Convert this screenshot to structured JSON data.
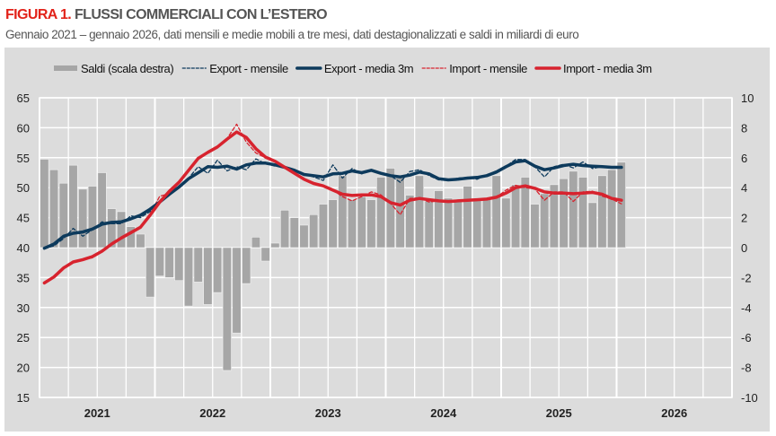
{
  "header": {
    "figure_label": "FIGURA 1.",
    "title": "FLUSSI COMMERCIALI CON L’ESTERO",
    "subtitle": "Gennaio 2021 – gennaio 2026, dati mensili e medie mobili a tre mesi, dati destagionalizzati e saldi in miliardi di euro"
  },
  "chart_data": {
    "type": "bar+line",
    "title": "FLUSSI COMMERCIALI CON L’ESTERO",
    "x_tick_labels": [
      "2021",
      "2022",
      "2023",
      "2024",
      "2025",
      "2026"
    ],
    "x_range": [
      "2021-01",
      "2026-12"
    ],
    "x_start": "2021-01",
    "left_axis": {
      "ylim": [
        15,
        65
      ],
      "ticks": [
        15,
        20,
        25,
        30,
        35,
        40,
        45,
        50,
        55,
        60,
        65
      ]
    },
    "right_axis": {
      "ylim": [
        -10,
        10
      ],
      "ticks": [
        -10,
        -8,
        -6,
        -4,
        -2,
        0,
        2,
        4,
        6,
        8,
        10
      ]
    },
    "grid": true,
    "legend_position": "top",
    "colors": {
      "bars": "#a6a6a6",
      "export": "#0d3a5c",
      "import": "#d7232e",
      "panel": "#dcdcdc",
      "grid": "#ffffff"
    },
    "series": [
      {
        "name": "Saldi (scala destra)",
        "kind": "bar",
        "axis": "right",
        "values": [
          5.9,
          5.2,
          4.3,
          5.5,
          3.9,
          4.1,
          5.0,
          2.6,
          2.4,
          1.4,
          0.9,
          -3.3,
          -1.9,
          -2.0,
          -2.2,
          -3.9,
          -2.3,
          -3.8,
          -3.0,
          -8.2,
          -5.7,
          -2.4,
          0.7,
          -0.9,
          0.3,
          2.5,
          2.0,
          1.5,
          2.2,
          2.9,
          3.2,
          4.8,
          3.2,
          3.4,
          3.2,
          4.7,
          5.3,
          4.8,
          3.5,
          4.8,
          3.1,
          3.8,
          3.3,
          3.1,
          4.1,
          3.2,
          3.3,
          4.8,
          3.3,
          4.2,
          4.7,
          2.9,
          3.6,
          4.2,
          4.6,
          5.1,
          4.7,
          3.0,
          4.8,
          5.2,
          5.7
        ]
      },
      {
        "name": "Export - mensile",
        "kind": "dashed-line",
        "axis": "left",
        "values": [
          39.8,
          40.3,
          41.5,
          43.2,
          41.9,
          43.0,
          44.3,
          44.0,
          44.0,
          45.3,
          45.0,
          46.0,
          47.8,
          48.8,
          50.2,
          51.6,
          53.5,
          52.4,
          54.6,
          52.8,
          53.5,
          53.0,
          54.8,
          54.0,
          53.6,
          53.5,
          52.8,
          52.2,
          51.8,
          51.2,
          53.8,
          51.6,
          53.2,
          52.3,
          52.8,
          52.5,
          52.0,
          50.9,
          52.7,
          53.0,
          52.0,
          51.3,
          51.2,
          51.6,
          51.7,
          51.4,
          52.1,
          52.8,
          53.6,
          54.7,
          54.7,
          53.5,
          51.8,
          53.5,
          53.9,
          53.3,
          54.3,
          53.2,
          53.5,
          53.4,
          53.5
        ]
      },
      {
        "name": "Export - media 3m",
        "kind": "line",
        "axis": "left",
        "values": [
          39.9,
          40.6,
          41.9,
          42.4,
          42.6,
          43.1,
          43.9,
          44.2,
          44.3,
          44.8,
          45.4,
          46.4,
          47.6,
          48.9,
          50.1,
          51.5,
          52.5,
          53.5,
          53.4,
          53.6,
          53.1,
          53.8,
          54.1,
          54.1,
          53.8,
          53.4,
          52.9,
          52.2,
          52.0,
          51.8,
          52.3,
          52.4,
          52.8,
          52.5,
          52.9,
          52.4,
          52.0,
          51.8,
          52.1,
          52.6,
          52.3,
          51.5,
          51.3,
          51.4,
          51.6,
          51.7,
          52.0,
          52.6,
          53.5,
          54.3,
          54.5,
          53.6,
          53.0,
          53.3,
          53.7,
          53.9,
          53.7,
          53.6,
          53.5,
          53.4,
          53.4
        ]
      },
      {
        "name": "Import - mensile",
        "kind": "dashed-line",
        "axis": "left",
        "values": [
          34.0,
          35.3,
          36.8,
          37.6,
          38.0,
          38.3,
          39.3,
          40.8,
          41.7,
          42.3,
          43.3,
          45.6,
          48.6,
          49.0,
          50.9,
          53.0,
          55.0,
          55.8,
          56.8,
          58.2,
          60.6,
          57.6,
          55.8,
          55.0,
          54.3,
          53.3,
          52.4,
          51.3,
          50.6,
          50.2,
          49.6,
          48.5,
          47.8,
          48.5,
          49.3,
          48.8,
          47.4,
          45.5,
          48.2,
          48.3,
          47.6,
          47.8,
          47.7,
          47.8,
          47.9,
          47.9,
          48.2,
          48.4,
          49.6,
          50.4,
          50.0,
          49.8,
          47.9,
          49.3,
          49.3,
          47.7,
          49.3,
          49.4,
          48.6,
          48.1,
          47.3
        ]
      },
      {
        "name": "Import - media 3m",
        "kind": "line",
        "axis": "left",
        "values": [
          34.1,
          35.1,
          36.6,
          37.6,
          38.0,
          38.5,
          39.4,
          40.6,
          41.6,
          42.5,
          43.4,
          45.4,
          47.6,
          49.4,
          50.9,
          52.9,
          54.9,
          55.9,
          56.8,
          58.1,
          59.3,
          58.4,
          56.5,
          55.1,
          54.4,
          53.4,
          52.4,
          51.4,
          50.7,
          50.3,
          49.6,
          48.9,
          48.7,
          48.8,
          48.8,
          48.5,
          47.5,
          47.1,
          47.9,
          48.2,
          48.0,
          47.8,
          47.7,
          47.8,
          47.9,
          48.0,
          48.1,
          48.4,
          49.1,
          50.0,
          50.3,
          49.9,
          49.3,
          49.1,
          49.1,
          49.0,
          49.1,
          49.2,
          48.9,
          48.2,
          47.9
        ]
      }
    ]
  }
}
